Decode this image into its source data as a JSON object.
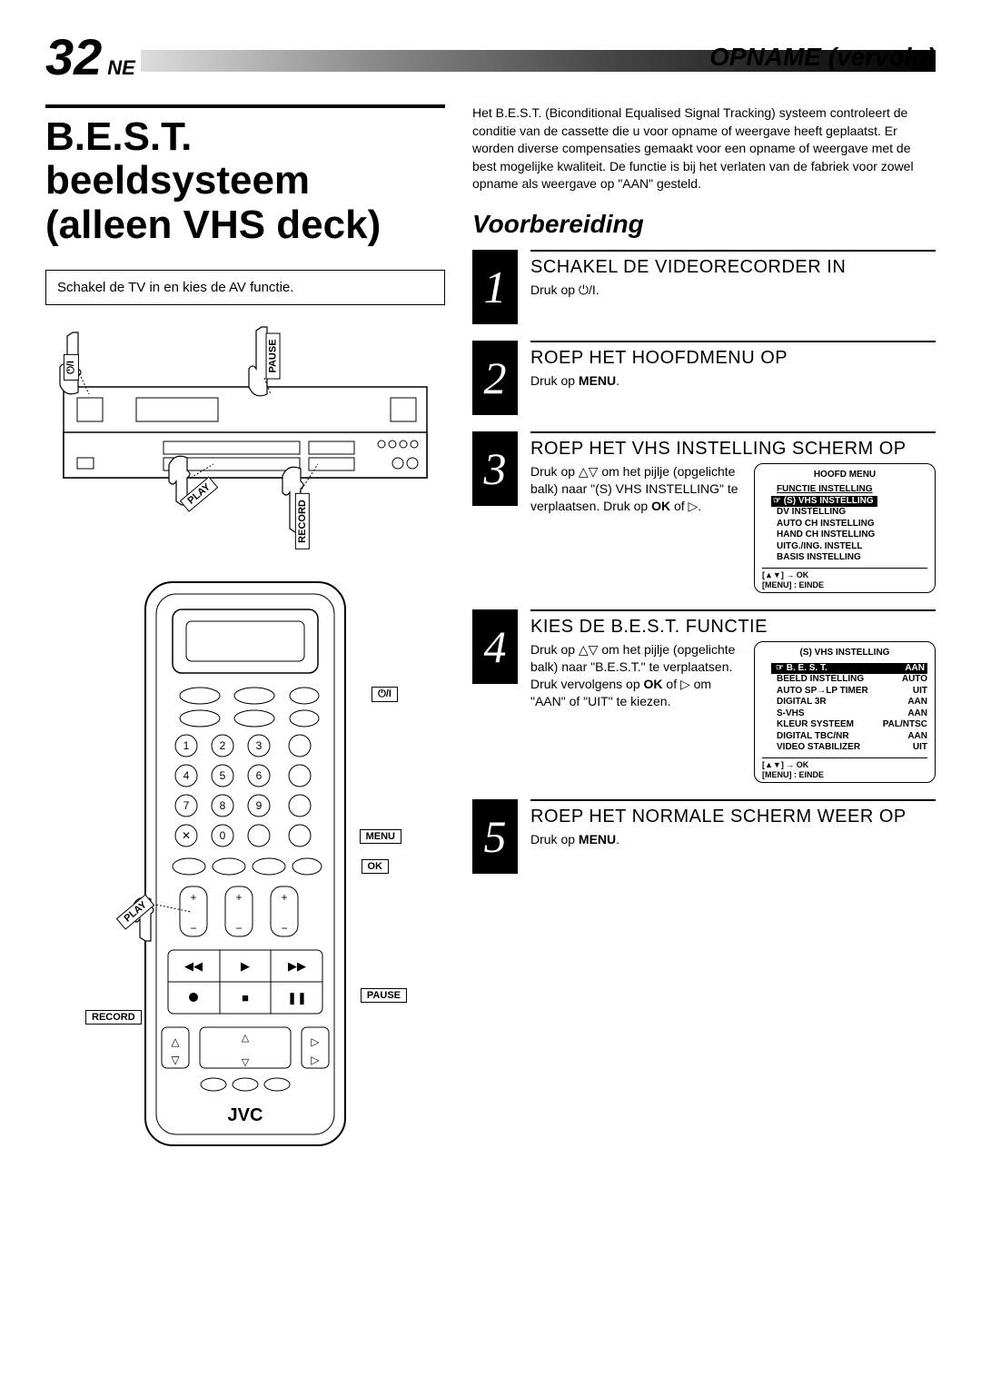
{
  "header": {
    "page_number": "32",
    "page_suffix": "NE",
    "section": "OPNAME (vervolg)"
  },
  "left": {
    "title": "B.E.S.T. beeldsysteem (alleen VHS deck)",
    "note": "Schakel de TV in en kies de AV functie.",
    "labels": {
      "pause": "PAUSE",
      "play": "PLAY",
      "record": "RECORD",
      "menu": "MENU",
      "ok": "OK",
      "brand": "JVC",
      "power": "⏻/I"
    }
  },
  "right": {
    "intro": "Het B.E.S.T. (Biconditional Equalised Signal Tracking) systeem controleert de conditie van de cassette die u voor opname of weergave heeft geplaatst. Er worden diverse compensaties gemaakt voor een opname of weergave met de best mogelijke kwaliteit. De functie is bij het verlaten van de fabriek voor zowel opname als weergave op \"AAN\" gesteld.",
    "subheading": "Voorbereiding",
    "steps": [
      {
        "num": "1",
        "title": "SCHAKEL DE VIDEORECORDER IN",
        "text_prefix": "Druk op ",
        "text_suffix": "⏻/I."
      },
      {
        "num": "2",
        "title": "ROEP HET HOOFDMENU OP",
        "text_html": "Druk op <b>MENU</b>."
      },
      {
        "num": "3",
        "title": "ROEP HET VHS INSTELLING SCHERM OP",
        "text_html": "Druk op △▽ om het pijlje (opgelichte balk) naar \"(S) VHS INSTELLING\" te verplaatsen. Druk op <b>OK</b> of ▷.",
        "menu": {
          "title": "HOOFD MENU",
          "items": [
            {
              "label": "FUNCTIE INSTELLING",
              "hl": false,
              "underline": true
            },
            {
              "label": "☞ (S) VHS INSTELLING",
              "hl": true
            },
            {
              "label": "DV INSTELLING",
              "hl": false
            },
            {
              "label": "AUTO CH INSTELLING",
              "hl": false
            },
            {
              "label": "HAND CH INSTELLING",
              "hl": false
            },
            {
              "label": "UITG./ING. INSTELL",
              "hl": false
            },
            {
              "label": "BASIS INSTELLING",
              "hl": false
            }
          ],
          "footer": "[▲▼] → OK\n[MENU] : EINDE"
        }
      },
      {
        "num": "4",
        "title": "KIES DE B.E.S.T. FUNCTIE",
        "text_html": "Druk op △▽ om het pijlje (opgelichte balk) naar \"B.E.S.T.\" te verplaatsen. Druk vervolgens op <b>OK</b> of ▷ om \"AAN\" of \"UIT\" te kiezen.",
        "menu": {
          "title": "(S) VHS INSTELLING",
          "rows": [
            {
              "label": "☞ B. E. S. T.",
              "val": "AAN",
              "hl": true
            },
            {
              "label": "BEELD INSTELLING",
              "val": "AUTO"
            },
            {
              "label": "AUTO SP→LP TIMER",
              "val": "UIT"
            },
            {
              "label": "DIGITAL 3R",
              "val": "AAN"
            },
            {
              "label": "S-VHS",
              "val": "AAN"
            },
            {
              "label": "KLEUR SYSTEEM",
              "val": "PAL/NTSC"
            },
            {
              "label": "DIGITAL TBC/NR",
              "val": "AAN"
            },
            {
              "label": "VIDEO STABILIZER",
              "val": "UIT"
            }
          ],
          "footer": "[▲▼] → OK\n[MENU] : EINDE"
        }
      },
      {
        "num": "5",
        "title": "ROEP HET NORMALE SCHERM WEER OP",
        "text_html": "Druk op <b>MENU</b>."
      }
    ]
  }
}
